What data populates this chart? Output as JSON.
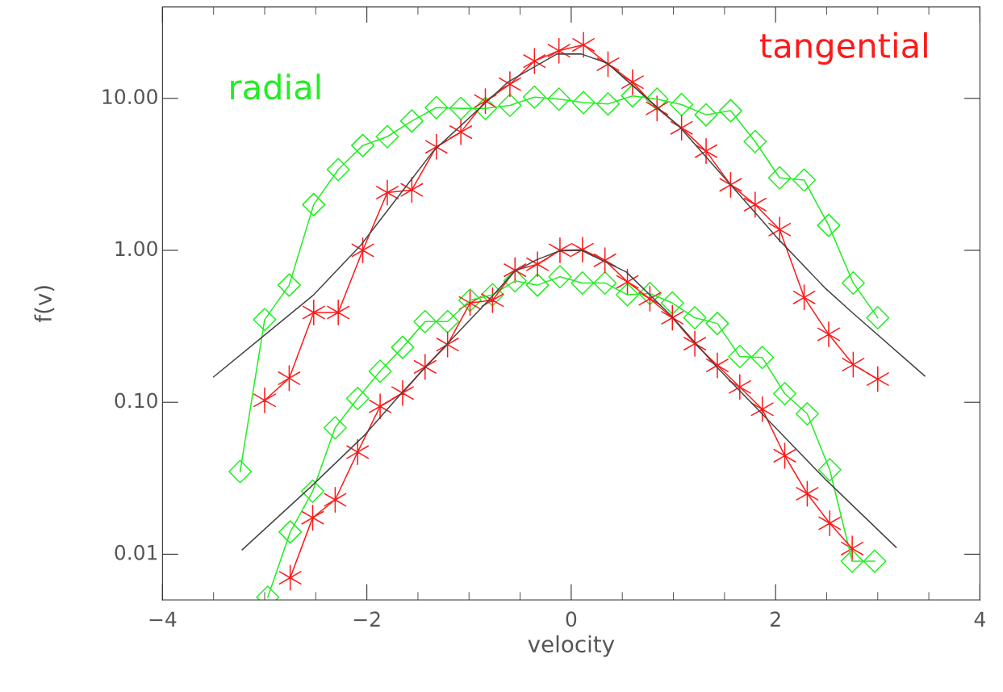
{
  "chart_data": {
    "type": "line",
    "xlabel": "velocity",
    "ylabel": "f(v)",
    "log": "y",
    "grid": false,
    "legend": false,
    "xlim": [
      -4,
      4
    ],
    "xticks": [
      {
        "value": -4,
        "label": "−4"
      },
      {
        "value": -2,
        "label": "−2"
      },
      0,
      2,
      4
    ],
    "ylim": [
      0.005,
      40
    ],
    "yticks": [
      {
        "value": 0.01,
        "label": "0.01"
      },
      {
        "value": 0.1,
        "label": "0.10"
      },
      {
        "value": 1,
        "label": "1.00"
      },
      {
        "value": 10,
        "label": "10.00"
      }
    ],
    "series": [
      {
        "name": "radial",
        "color": "#22ee22",
        "marker": "diamond",
        "x": [
          -3.24,
          -3.0,
          -2.76,
          -2.52,
          -2.28,
          -2.04,
          -1.8,
          -1.56,
          -1.32,
          -1.08,
          -0.84,
          -0.6,
          -0.36,
          -0.12,
          0.12,
          0.36,
          0.6,
          0.84,
          1.08,
          1.32,
          1.56,
          1.8,
          2.04,
          2.28,
          2.52,
          2.76,
          3.0
        ],
        "values": [
          0.035,
          0.35,
          0.59,
          2.0,
          3.4,
          4.9,
          5.6,
          7.1,
          8.7,
          8.6,
          8.6,
          9.0,
          10.2,
          9.9,
          9.4,
          9.2,
          10.4,
          9.9,
          9.1,
          7.8,
          8.3,
          5.2,
          3.0,
          2.9,
          1.46,
          0.61,
          0.36
        ]
      },
      {
        "name": "tangential",
        "color": "#ff1a1a",
        "marker": "cross",
        "x": [
          -3.0,
          -2.76,
          -2.52,
          -2.28,
          -2.04,
          -1.8,
          -1.56,
          -1.32,
          -1.08,
          -0.84,
          -0.6,
          -0.36,
          -0.12,
          0.12,
          0.36,
          0.6,
          0.84,
          1.08,
          1.32,
          1.56,
          1.8,
          2.04,
          2.28,
          2.52,
          2.76,
          3.0
        ],
        "values": [
          0.103,
          0.144,
          0.39,
          0.39,
          1.0,
          2.4,
          2.5,
          4.8,
          6.0,
          9.6,
          12.4,
          17.6,
          20.6,
          22.5,
          16.8,
          12.8,
          8.6,
          6.4,
          4.5,
          2.7,
          2.0,
          1.37,
          0.49,
          0.28,
          0.177,
          0.142
        ]
      },
      {
        "color": "#22ee22",
        "marker": "diamond",
        "x": [
          -2.97,
          -2.75,
          -2.53,
          -2.31,
          -2.09,
          -1.87,
          -1.65,
          -1.43,
          -1.21,
          -0.99,
          -0.77,
          -0.55,
          -0.33,
          -0.11,
          0.11,
          0.33,
          0.55,
          0.77,
          0.99,
          1.21,
          1.43,
          1.65,
          1.87,
          2.09,
          2.31,
          2.53,
          2.75,
          2.97
        ],
        "values": [
          0.0052,
          0.014,
          0.026,
          0.068,
          0.106,
          0.16,
          0.23,
          0.34,
          0.34,
          0.47,
          0.51,
          0.63,
          0.59,
          0.67,
          0.61,
          0.61,
          0.51,
          0.52,
          0.45,
          0.36,
          0.33,
          0.2,
          0.197,
          0.114,
          0.084,
          0.036,
          0.009,
          0.009
        ]
      },
      {
        "color": "#ff1a1a",
        "marker": "cross",
        "x": [
          -2.75,
          -2.53,
          -2.31,
          -2.09,
          -1.87,
          -1.65,
          -1.43,
          -1.21,
          -0.99,
          -0.77,
          -0.55,
          -0.33,
          -0.11,
          0.11,
          0.33,
          0.55,
          0.77,
          0.99,
          1.21,
          1.43,
          1.65,
          1.87,
          2.09,
          2.31,
          2.53,
          2.75
        ],
        "values": [
          0.007,
          0.0174,
          0.0228,
          0.047,
          0.094,
          0.115,
          0.171,
          0.24,
          0.45,
          0.47,
          0.74,
          0.81,
          1.0,
          1.01,
          0.86,
          0.62,
          0.48,
          0.36,
          0.243,
          0.175,
          0.126,
          0.09,
          0.0445,
          0.025,
          0.016,
          0.0109
        ]
      },
      {
        "color": "#444444",
        "marker": "none",
        "x": [
          -3.5,
          -3.05,
          -2.52,
          -2.06,
          -1.35,
          -0.62,
          -0.14,
          0.1,
          0.35,
          1.06,
          1.54,
          2.04,
          2.49,
          2.75,
          3.46
        ],
        "values": [
          0.147,
          0.26,
          0.51,
          1.08,
          4.5,
          12.8,
          19.6,
          19.6,
          17.1,
          6.5,
          2.8,
          1.16,
          0.56,
          0.39,
          0.149
        ]
      },
      {
        "color": "#444444",
        "marker": "none",
        "x": [
          -3.22,
          -2.55,
          -2.02,
          -1.66,
          -1.22,
          -0.82,
          -0.56,
          -0.35,
          -0.12,
          0.1,
          0.54,
          0.98,
          1.43,
          1.96,
          2.49,
          3.18
        ],
        "values": [
          0.0107,
          0.0277,
          0.061,
          0.115,
          0.24,
          0.46,
          0.72,
          0.86,
          0.99,
          1.0,
          0.72,
          0.37,
          0.169,
          0.0725,
          0.031,
          0.0111
        ]
      }
    ]
  }
}
